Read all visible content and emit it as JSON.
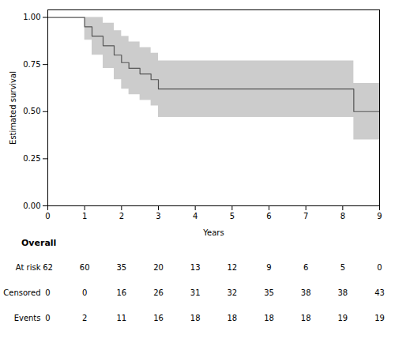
{
  "chart_data": {
    "type": "step",
    "title": "",
    "xlabel": "Years",
    "ylabel": "Estimated survival",
    "x": [
      0,
      0.9,
      1.0,
      1.2,
      1.5,
      1.8,
      2.0,
      2.2,
      2.5,
      2.8,
      3.0,
      8.0,
      8.3
    ],
    "values": [
      1.0,
      1.0,
      0.95,
      0.9,
      0.85,
      0.8,
      0.76,
      0.73,
      0.7,
      0.67,
      0.62,
      0.62,
      0.5
    ],
    "upper": [
      1.0,
      1.0,
      1.0,
      1.0,
      0.97,
      0.93,
      0.9,
      0.87,
      0.84,
      0.81,
      0.77,
      0.77,
      0.65
    ],
    "lower": [
      1.0,
      1.0,
      0.88,
      0.8,
      0.73,
      0.67,
      0.62,
      0.59,
      0.56,
      0.53,
      0.47,
      0.47,
      0.35
    ],
    "color": "#555555",
    "xlim": [
      0,
      9
    ],
    "ylim": [
      0.0,
      1.04
    ],
    "xticks": [
      0,
      1,
      2,
      3,
      4,
      5,
      6,
      7,
      8,
      9
    ],
    "yticks": [
      {
        "value": 0.0,
        "label": "0.00"
      },
      {
        "value": 0.25,
        "label": "0.25"
      },
      {
        "value": 0.5,
        "label": "0.50"
      },
      {
        "value": 0.75,
        "label": "0.75"
      },
      {
        "value": 1.0,
        "label": "1.00"
      }
    ],
    "grid": false,
    "table": {
      "title": "Overall",
      "x": [
        0,
        1,
        2,
        3,
        4,
        5,
        6,
        7,
        8,
        9
      ],
      "rows": [
        {
          "label": "At risk",
          "values": [
            62,
            60,
            35,
            20,
            13,
            12,
            9,
            6,
            5,
            0
          ]
        },
        {
          "label": "Censored",
          "values": [
            0,
            0,
            16,
            26,
            31,
            32,
            35,
            38,
            38,
            43
          ]
        },
        {
          "label": "Events",
          "values": [
            0,
            2,
            11,
            16,
            18,
            18,
            18,
            18,
            19,
            19
          ]
        }
      ]
    }
  }
}
